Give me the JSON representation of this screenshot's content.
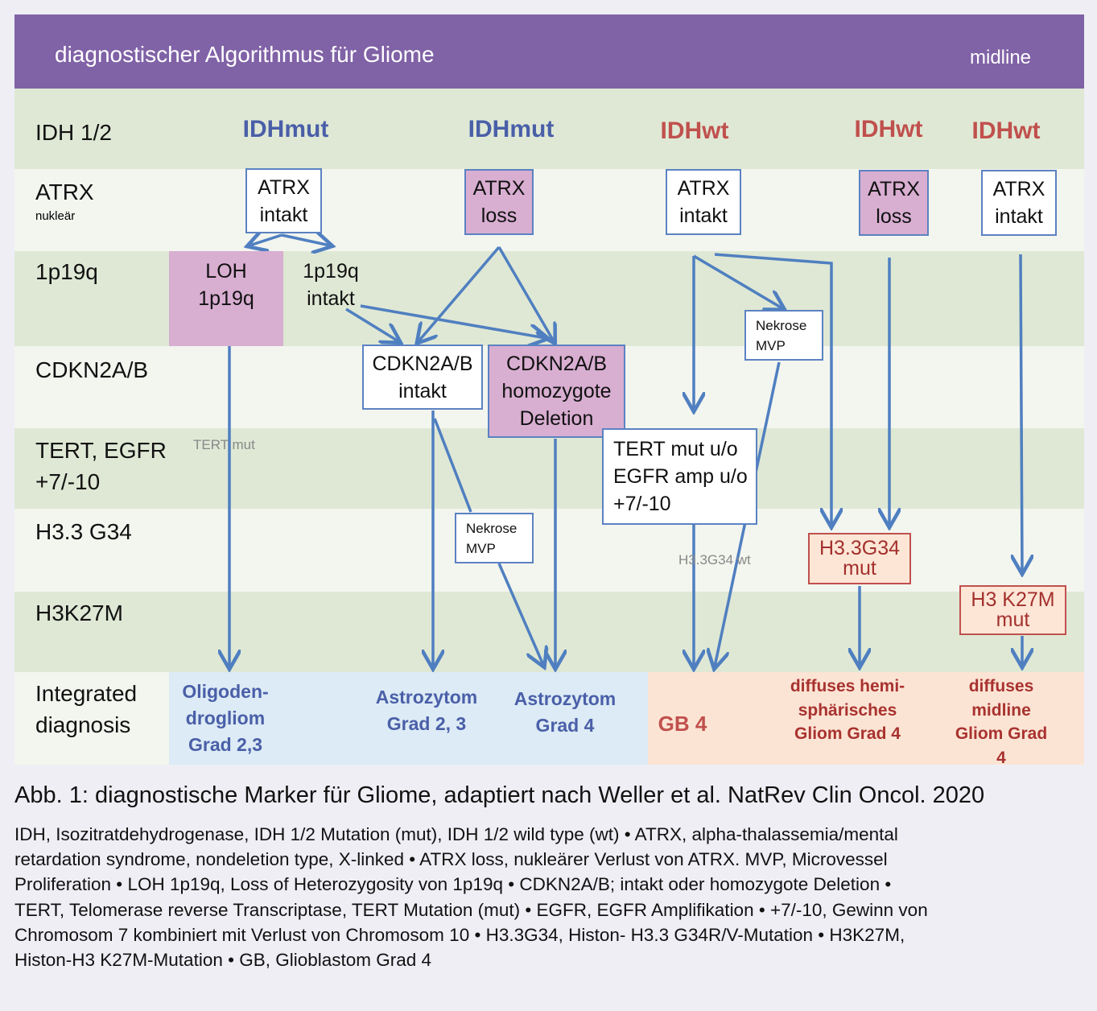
{
  "header": {
    "title": "diagnostischer Algorithmus für Gliome",
    "tag": "midline"
  },
  "rows": [
    [
      "IDH 1/2"
    ],
    [
      "ATRX"
    ],
    [
      "1p19q"
    ],
    [
      "CDKN2A/B"
    ],
    [
      "TERT, EGFR",
      "+7/-10"
    ],
    [
      "H3.3 G34"
    ],
    [
      "H3K27M"
    ],
    [
      "Integrated",
      "diagnosis"
    ]
  ],
  "atrx_sub": "nukleär",
  "idh": [
    "IDHmut",
    "IDHmut",
    "IDHwt",
    "IDHwt",
    "IDHwt"
  ],
  "nodes": [
    [
      "ATRX",
      "intakt"
    ],
    [
      "ATRX",
      "loss"
    ],
    [
      "ATRX",
      "intakt"
    ],
    [
      "ATRX",
      "loss"
    ],
    [
      "ATRX",
      "intakt"
    ],
    [
      "LOH",
      "1p19q"
    ],
    [
      "1p19q",
      "intakt"
    ],
    [
      "CDKN2A/B",
      "intakt"
    ],
    [
      "CDKN2A/B",
      "homozygote",
      "Deletion"
    ],
    [
      "Nekrose",
      "MVP"
    ],
    [
      "Nekrose",
      "MVP"
    ],
    [
      "TERT mut u/o",
      "EGFR amp u/o",
      "+7/-10"
    ],
    [
      "H3.3G34",
      "mut"
    ],
    [
      "H3 K27M",
      "mut"
    ]
  ],
  "annotations": [
    "TERT mut",
    "H3.3G34 wt"
  ],
  "diagnoses": [
    [
      "Oligoden-",
      "drogliom",
      "Grad 2,3"
    ],
    [
      "Astrozytom",
      "Grad 2, 3"
    ],
    [
      "Astrozytom",
      "Grad 4"
    ],
    [
      "GB 4"
    ],
    [
      "diffuses hemi-",
      "sphärisches",
      "Gliom Grad 4"
    ],
    [
      "diffuses",
      "midline",
      "Gliom Grad 4"
    ]
  ],
  "caption": {
    "title": "Abb. 1: diagnostische Marker für Gliome, adaptiert nach Weller et al. NatRev Clin Oncol. 2020",
    "lines": [
      "IDH, Isozitratdehydrogenase, IDH 1/2 Mutation (mut), IDH 1/2 wild type (wt) • ATRX, alpha-thalassemia/mental",
      "retardation syndrome, nondeletion type, X-linked • ATRX loss, nukleärer Verlust von ATRX. MVP, Microvessel",
      "Proliferation • LOH 1p19q, Loss of Heterozygosity von 1p19q • CDKN2A/B; intakt oder homozygote Deletion •",
      "TERT, Telomerase reverse Transcriptase, TERT Mutation (mut) • EGFR, EGFR Amplifikation • +7/-10, Gewinn von",
      "Chromosom 7 kombiniert mit Verlust von Chromosom 10 • H3.3G34, Histon- H3.3 G34R/V-Mutation • H3K27M,",
      "Histon-H3 K27M-Mutation • GB, Glioblastom Grad 4"
    ]
  }
}
